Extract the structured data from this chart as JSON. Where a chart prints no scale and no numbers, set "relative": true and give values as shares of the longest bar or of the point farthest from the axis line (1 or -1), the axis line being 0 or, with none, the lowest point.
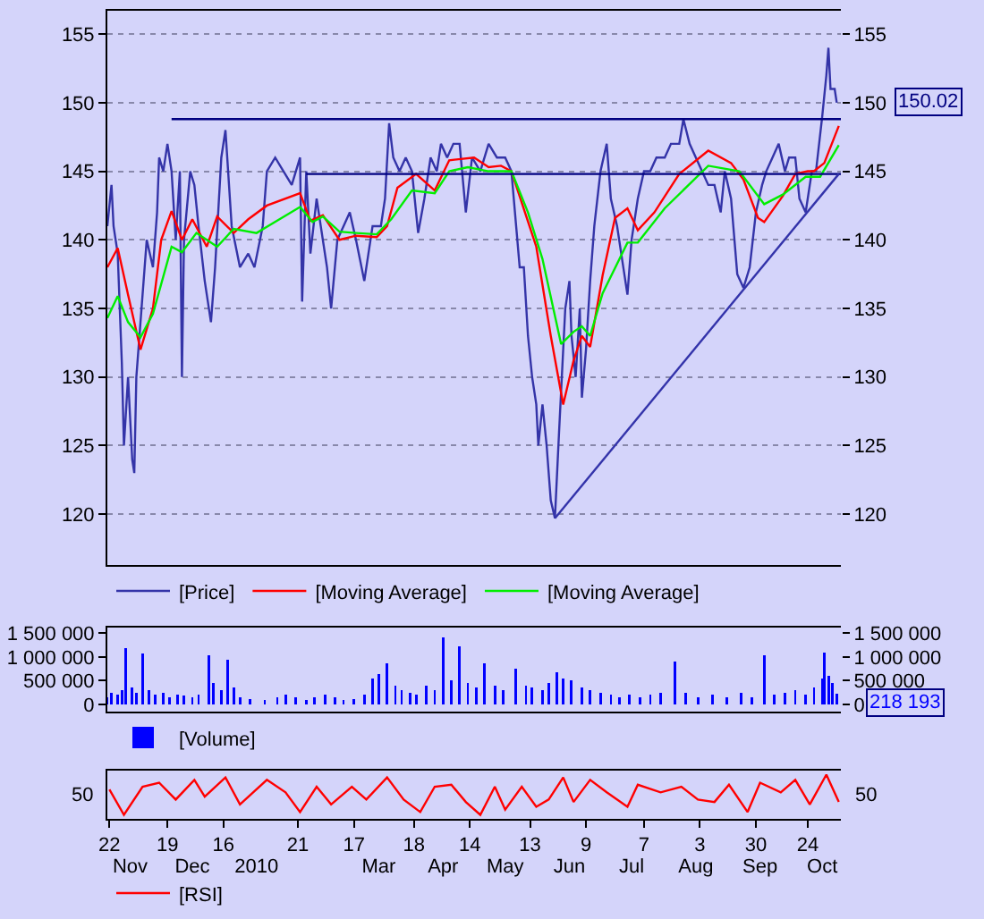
{
  "chart_data": [
    {
      "type": "line",
      "xlim": [
        "2009-10-21",
        "2010-10-10"
      ],
      "ylim": [
        116.3,
        156.7
      ],
      "yticks": [
        120,
        125,
        130,
        135,
        140,
        145,
        150,
        155
      ],
      "y2lim": [
        116.3,
        156.7
      ],
      "y2ticks": [
        120,
        125,
        130,
        135,
        140,
        145,
        150,
        155
      ],
      "grid": "y",
      "legend": "bottom",
      "tick_labels": "y",
      "annotations": [
        "150.02"
      ],
      "series": [
        {
          "name": "[Price]",
          "color": "#3434a8",
          "x": [
            "2009-10-21",
            "2009-10-23",
            "2009-10-24",
            "2009-10-26",
            "2009-10-28",
            "2009-10-29",
            "2009-10-31",
            "2009-11-02",
            "2009-11-03",
            "2009-11-04",
            "2009-11-06",
            "2009-11-09",
            "2009-11-12",
            "2009-11-14",
            "2009-11-15",
            "2009-11-17",
            "2009-11-19",
            "2009-11-21",
            "2009-11-23",
            "2009-11-25",
            "2009-11-26",
            "2009-11-27",
            "2009-11-30",
            "2009-12-02",
            "2009-12-04",
            "2009-12-07",
            "2009-12-10",
            "2009-12-12",
            "2009-12-15",
            "2009-12-17",
            "2009-12-20",
            "2009-12-24",
            "2009-12-28",
            "2009-12-31",
            "2010-01-04",
            "2010-01-06",
            "2010-01-10",
            "2010-01-14",
            "2010-01-18",
            "2010-01-22",
            "2010-01-23",
            "2010-01-25",
            "2010-01-27",
            "2010-01-30",
            "2010-02-01",
            "2010-02-04",
            "2010-02-06",
            "2010-02-09",
            "2010-02-12",
            "2010-02-15",
            "2010-02-18",
            "2010-02-22",
            "2010-02-26",
            "2010-03-02",
            "2010-03-04",
            "2010-03-06",
            "2010-03-08",
            "2010-03-11",
            "2010-03-14",
            "2010-03-17",
            "2010-03-20",
            "2010-03-23",
            "2010-03-26",
            "2010-03-29",
            "2010-03-31",
            "2010-04-03",
            "2010-04-06",
            "2010-04-09",
            "2010-04-12",
            "2010-04-15",
            "2010-04-19",
            "2010-04-23",
            "2010-04-27",
            "2010-05-01",
            "2010-05-04",
            "2010-05-08",
            "2010-05-10",
            "2010-05-12",
            "2010-05-14",
            "2010-05-16",
            "2010-05-17",
            "2010-05-19",
            "2010-05-21",
            "2010-05-23",
            "2010-05-25",
            "2010-05-27",
            "2010-05-29",
            "2010-05-30",
            "2010-06-01",
            "2010-06-02",
            "2010-06-04",
            "2010-06-06",
            "2010-06-07",
            "2010-06-09",
            "2010-06-11",
            "2010-06-13",
            "2010-06-16",
            "2010-06-19",
            "2010-06-21",
            "2010-06-24",
            "2010-06-26",
            "2010-06-29",
            "2010-07-01",
            "2010-07-04",
            "2010-07-07",
            "2010-07-10",
            "2010-07-13",
            "2010-07-17",
            "2010-07-20",
            "2010-07-24",
            "2010-07-26",
            "2010-07-29",
            "2010-08-01",
            "2010-08-04",
            "2010-08-07",
            "2010-08-10",
            "2010-08-13",
            "2010-08-15",
            "2010-08-18",
            "2010-08-21",
            "2010-08-24",
            "2010-08-27",
            "2010-08-30",
            "2010-09-02",
            "2010-09-04",
            "2010-09-07",
            "2010-09-10",
            "2010-09-13",
            "2010-09-15",
            "2010-09-18",
            "2010-09-20",
            "2010-09-23",
            "2010-09-26",
            "2010-09-28",
            "2010-10-01",
            "2010-10-03",
            "2010-10-04",
            "2010-10-05",
            "2010-10-07",
            "2010-10-08"
          ],
          "values": [
            141,
            144,
            141,
            139,
            131,
            125,
            130,
            124,
            123,
            130,
            134,
            140,
            138,
            142,
            146,
            145,
            147,
            145,
            140,
            145,
            130,
            140,
            145,
            144,
            141,
            137,
            134,
            138,
            146,
            148,
            141,
            138,
            139,
            138,
            141,
            145,
            146,
            145,
            144,
            146,
            135.5,
            145,
            139,
            143,
            141,
            138,
            135,
            140,
            141,
            142,
            140,
            137,
            141,
            141,
            143,
            148.5,
            146,
            145,
            146,
            145,
            140.5,
            143,
            146,
            145,
            147,
            146,
            147,
            147,
            142,
            146,
            145,
            147,
            146,
            146,
            145,
            138,
            138,
            133,
            130,
            128,
            125,
            128,
            125,
            121,
            119.7,
            126,
            132,
            135,
            137,
            133,
            130,
            135,
            128.5,
            132,
            137,
            141,
            145,
            147,
            143,
            141,
            139,
            136,
            140,
            143,
            145,
            145,
            146,
            146,
            147,
            147,
            148.8,
            147,
            146,
            145,
            144,
            144,
            142,
            145,
            143,
            137.5,
            136.5,
            138,
            142,
            144,
            145,
            146,
            147,
            145,
            146,
            146,
            143,
            142,
            145,
            145,
            149,
            152,
            154,
            151,
            151,
            150
          ]
        },
        {
          "name": "[Moving Average]",
          "color": "#ff0000",
          "x": [
            "2009-10-21",
            "2009-10-26",
            "2009-10-31",
            "2009-11-06",
            "2009-11-12",
            "2009-11-16",
            "2009-11-21",
            "2009-11-26",
            "2009-12-01",
            "2009-12-08",
            "2009-12-13",
            "2009-12-21",
            "2009-12-28",
            "2010-01-06",
            "2010-01-22",
            "2010-01-27",
            "2010-02-02",
            "2010-02-10",
            "2010-02-18",
            "2010-02-28",
            "2010-03-05",
            "2010-03-10",
            "2010-03-19",
            "2010-03-28",
            "2010-04-04",
            "2010-04-16",
            "2010-04-23",
            "2010-04-29",
            "2010-05-04",
            "2010-05-16",
            "2010-05-23",
            "2010-05-29",
            "2010-06-03",
            "2010-06-07",
            "2010-06-11",
            "2010-06-17",
            "2010-06-23",
            "2010-06-29",
            "2010-07-04",
            "2010-07-12",
            "2010-07-24",
            "2010-08-07",
            "2010-08-18",
            "2010-08-24",
            "2010-08-31",
            "2010-09-03",
            "2010-09-12",
            "2010-09-18",
            "2010-09-24",
            "2010-09-27",
            "2010-10-02",
            "2010-10-09"
          ],
          "values": [
            138,
            139.4,
            136,
            132,
            135,
            140,
            142.1,
            140,
            141.5,
            139.5,
            141.7,
            140.5,
            141.5,
            142.5,
            143.4,
            141.4,
            141.8,
            140,
            140.3,
            140.2,
            141,
            143.8,
            144.8,
            143.6,
            145.8,
            146,
            145.3,
            145.4,
            145,
            139.5,
            133,
            128,
            131.2,
            133,
            132.2,
            137.4,
            141.6,
            142.3,
            140.7,
            142,
            144.8,
            146.5,
            145.6,
            144.4,
            141.6,
            141.3,
            143.2,
            144.8,
            145,
            145,
            145.6,
            148.3
          ]
        },
        {
          "name": "[Moving Average]",
          "color": "#00ee00",
          "x": [
            "2009-10-21",
            "2009-10-26",
            "2009-10-31",
            "2009-11-06",
            "2009-11-12",
            "2009-11-21",
            "2009-11-26",
            "2009-12-03",
            "2009-12-13",
            "2009-12-21",
            "2010-01-01",
            "2010-01-22",
            "2010-01-28",
            "2010-02-02",
            "2010-02-10",
            "2010-02-18",
            "2010-02-28",
            "2010-03-07",
            "2010-03-17",
            "2010-03-28",
            "2010-04-04",
            "2010-04-13",
            "2010-04-23",
            "2010-05-04",
            "2010-05-12",
            "2010-05-19",
            "2010-05-28",
            "2010-06-03",
            "2010-06-07",
            "2010-06-11",
            "2010-06-17",
            "2010-06-29",
            "2010-07-04",
            "2010-07-17",
            "2010-08-07",
            "2010-08-22",
            "2010-09-03",
            "2010-09-12",
            "2010-09-23",
            "2010-09-30",
            "2010-10-09"
          ],
          "values": [
            134.3,
            135.9,
            134,
            132.9,
            134.6,
            139.5,
            139.1,
            140.5,
            139.5,
            140.8,
            140.5,
            142.4,
            141.3,
            141.7,
            140.6,
            140.5,
            140.4,
            141.5,
            143.6,
            143.4,
            145,
            145.3,
            145,
            145,
            142,
            138.6,
            132.4,
            133.3,
            133.7,
            133,
            136.1,
            139.8,
            139.8,
            142.3,
            145.4,
            145,
            142.6,
            143.3,
            144.6,
            144.6,
            146.9
          ]
        },
        {
          "color": "#000080",
          "x": [
            "2009-11-21",
            "2010-10-10"
          ],
          "values": [
            148.8,
            148.8
          ]
        },
        {
          "color": "#000080",
          "x": [
            "2010-01-25",
            "2010-10-10"
          ],
          "values": [
            144.8,
            144.8
          ]
        },
        {
          "color": "#3333aa",
          "x": [
            "2010-05-25",
            "2010-10-09"
          ],
          "values": [
            119.7,
            144.8
          ]
        }
      ]
    },
    {
      "type": "bar",
      "xlim": [
        "2009-10-21",
        "2010-10-10"
      ],
      "ylim": [
        -150000,
        1620000
      ],
      "yticks": [
        {
          "value": 0,
          "label": "0"
        },
        {
          "value": 500000,
          "label": "500 000"
        },
        {
          "value": 1000000,
          "label": "1 000 000"
        },
        {
          "value": 1500000,
          "label": "1 500 000"
        }
      ],
      "y2lim": [
        -150000,
        1620000
      ],
      "y2ticks": [
        {
          "value": 0,
          "label": "0"
        },
        {
          "value": 500000,
          "label": "500 000"
        },
        {
          "value": 1000000,
          "label": "1 000 000"
        },
        {
          "value": 1500000,
          "label": "1 500 000"
        }
      ],
      "legend": "bottom",
      "tick_labels": "y",
      "annotations": [
        "218 193"
      ],
      "x": [
        "2009-10-21",
        "2009-10-23",
        "2009-10-26",
        "2009-10-28",
        "2009-10-30",
        "2009-11-02",
        "2009-11-04",
        "2009-11-07",
        "2009-11-10",
        "2009-11-13",
        "2009-11-17",
        "2009-11-20",
        "2009-11-24",
        "2009-11-27",
        "2009-12-01",
        "2009-12-04",
        "2009-12-09",
        "2009-12-11",
        "2009-12-15",
        "2009-12-18",
        "2009-12-21",
        "2009-12-24",
        "2009-12-29",
        "2010-01-05",
        "2010-01-11",
        "2010-01-15",
        "2010-01-20",
        "2010-01-25",
        "2010-01-29",
        "2010-02-03",
        "2010-02-08",
        "2010-02-12",
        "2010-02-17",
        "2010-02-22",
        "2010-02-26",
        "2010-03-01",
        "2010-03-05",
        "2010-03-09",
        "2010-03-12",
        "2010-03-16",
        "2010-03-19",
        "2010-03-24",
        "2010-03-28",
        "2010-04-01",
        "2010-04-05",
        "2010-04-09",
        "2010-04-13",
        "2010-04-17",
        "2010-04-21",
        "2010-04-26",
        "2010-04-30",
        "2010-05-06",
        "2010-05-11",
        "2010-05-14",
        "2010-05-19",
        "2010-05-22",
        "2010-05-26",
        "2010-05-29",
        "2010-06-02",
        "2010-06-07",
        "2010-06-11",
        "2010-06-16",
        "2010-06-21",
        "2010-06-25",
        "2010-06-30",
        "2010-07-05",
        "2010-07-10",
        "2010-07-15",
        "2010-07-22",
        "2010-07-27",
        "2010-08-02",
        "2010-08-09",
        "2010-08-16",
        "2010-08-23",
        "2010-08-28",
        "2010-09-03",
        "2010-09-08",
        "2010-09-13",
        "2010-09-18",
        "2010-09-23",
        "2010-09-27",
        "2010-10-01",
        "2010-10-02",
        "2010-10-04",
        "2010-10-06",
        "2010-10-08"
      ],
      "series": [
        {
          "name": "[Volume]",
          "color": "#0000ff",
          "values": [
            150000,
            250000,
            200000,
            300000,
            1180000,
            350000,
            250000,
            1070000,
            300000,
            200000,
            250000,
            150000,
            200000,
            180000,
            150000,
            200000,
            1030000,
            450000,
            300000,
            950000,
            350000,
            150000,
            120000,
            100000,
            150000,
            200000,
            150000,
            100000,
            150000,
            200000,
            150000,
            100000,
            120000,
            200000,
            550000,
            650000,
            870000,
            400000,
            300000,
            250000,
            200000,
            400000,
            300000,
            1420000,
            500000,
            1220000,
            450000,
            350000,
            870000,
            400000,
            300000,
            750000,
            400000,
            350000,
            300000,
            450000,
            670000,
            550000,
            500000,
            350000,
            300000,
            250000,
            200000,
            150000,
            200000,
            150000,
            200000,
            250000,
            910000,
            250000,
            150000,
            200000,
            150000,
            250000,
            150000,
            1030000,
            200000,
            250000,
            300000,
            200000,
            350000,
            550000,
            1100000,
            600000,
            450000,
            220000
          ]
        }
      ]
    },
    {
      "type": "line",
      "xlim": [
        "2009-10-21",
        "2010-10-10"
      ],
      "xticks": [
        {
          "value": "2009-10-22",
          "label": "22"
        },
        {
          "value": "2009-11-19",
          "label": "19"
        },
        {
          "value": "2009-12-16",
          "label": "16"
        },
        {
          "value": "2010-01-21",
          "label": "21"
        },
        {
          "value": "2010-02-17",
          "label": "17"
        },
        {
          "value": "2010-03-18",
          "label": "18"
        },
        {
          "value": "2010-04-14",
          "label": "14"
        },
        {
          "value": "2010-05-13",
          "label": "13"
        },
        {
          "value": "2010-06-09",
          "label": "9"
        },
        {
          "value": "2010-07-07",
          "label": "7"
        },
        {
          "value": "2010-08-03",
          "label": "3"
        },
        {
          "value": "2010-08-30",
          "label": "30"
        },
        {
          "value": "2010-09-24",
          "label": "24"
        }
      ],
      "x2lim": [
        "2009-10-21",
        "2010-10-10"
      ],
      "x2ticks": [
        {
          "value": "2009-11-01",
          "label": "Nov"
        },
        {
          "value": "2009-12-01",
          "label": "Dec"
        },
        {
          "value": "2010-01-01",
          "label": "2010"
        },
        {
          "value": "2010-03-01",
          "label": "Mar"
        },
        {
          "value": "2010-04-01",
          "label": "Apr"
        },
        {
          "value": "2010-05-01",
          "label": "May"
        },
        {
          "value": "2010-06-01",
          "label": "Jun"
        },
        {
          "value": "2010-07-01",
          "label": "Jul"
        },
        {
          "value": "2010-08-01",
          "label": "Aug"
        },
        {
          "value": "2010-09-01",
          "label": "Sep"
        },
        {
          "value": "2010-10-01",
          "label": "Oct"
        }
      ],
      "relative": true,
      "annotations": [
        "50",
        "50"
      ],
      "legend": "bottom",
      "series": [
        {
          "name": "[RSI]",
          "color": "#ff0000",
          "x": [
            "2009-10-22",
            "2009-10-29",
            "2009-11-07",
            "2009-11-15",
            "2009-11-23",
            "2009-12-02",
            "2009-12-07",
            "2009-12-17",
            "2009-12-24",
            "2010-01-06",
            "2010-01-15",
            "2010-01-22",
            "2010-01-30",
            "2010-02-06",
            "2010-02-16",
            "2010-02-23",
            "2010-03-05",
            "2010-03-13",
            "2010-03-21",
            "2010-03-28",
            "2010-04-05",
            "2010-04-12",
            "2010-04-19",
            "2010-04-26",
            "2010-05-01",
            "2010-05-09",
            "2010-05-16",
            "2010-05-22",
            "2010-05-29",
            "2010-06-03",
            "2010-06-11",
            "2010-06-19",
            "2010-06-29",
            "2010-07-04",
            "2010-07-15",
            "2010-07-25",
            "2010-08-02",
            "2010-08-10",
            "2010-08-17",
            "2010-08-26",
            "2010-09-01",
            "2010-09-11",
            "2010-09-18",
            "2010-09-25",
            "2010-10-03",
            "2010-10-09"
          ],
          "values": [
            0.63,
            0,
            0.7,
            0.8,
            0.38,
            0.87,
            0.45,
            0.93,
            0.26,
            0.87,
            0.56,
            0.07,
            0.7,
            0.26,
            0.7,
            0.38,
            0.93,
            0.38,
            0.07,
            0.7,
            0.75,
            0.32,
            0,
            0.7,
            0.13,
            0.7,
            0.2,
            0.38,
            0.93,
            0.32,
            0.87,
            0.56,
            0.2,
            0.75,
            0.56,
            0.7,
            0.38,
            0.32,
            0.75,
            0.07,
            0.8,
            0.56,
            0.87,
            0.26,
            1,
            0.32
          ]
        }
      ]
    }
  ]
}
